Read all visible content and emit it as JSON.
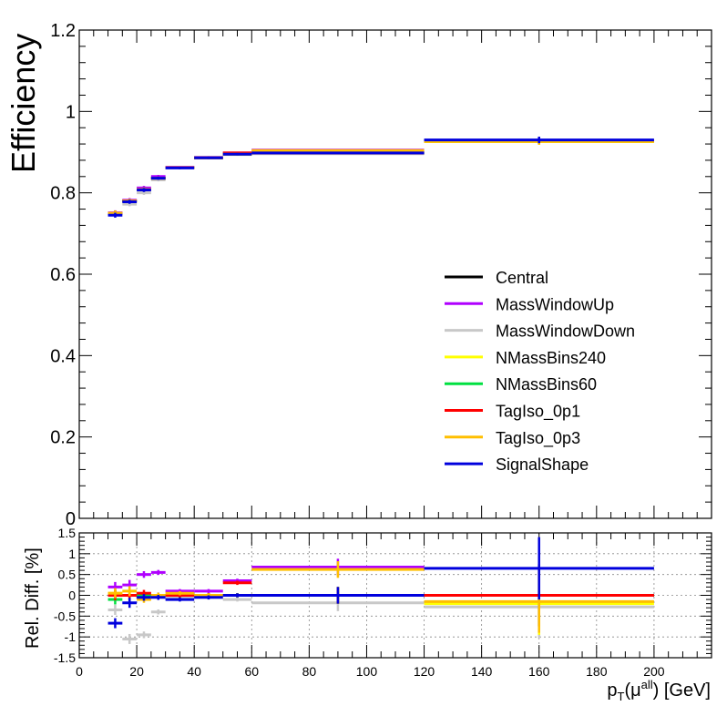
{
  "chart_data": [
    {
      "type": "line",
      "panel": "main",
      "ylabel": "Efficiency",
      "xlim": [
        0,
        220
      ],
      "ylim": [
        0,
        1.2
      ],
      "yticks": [
        "0",
        "0.2",
        "0.4",
        "0.6",
        "0.8",
        "1",
        "1.2"
      ],
      "ytick_values": [
        0,
        0.2,
        0.4,
        0.6,
        0.8,
        1.0,
        1.2
      ],
      "bins": [
        [
          10,
          15
        ],
        [
          15,
          20
        ],
        [
          20,
          25
        ],
        [
          25,
          30
        ],
        [
          30,
          40
        ],
        [
          40,
          50
        ],
        [
          50,
          60
        ],
        [
          60,
          120
        ],
        [
          120,
          200
        ]
      ],
      "series": [
        {
          "name": "Central",
          "color": "#000000",
          "values": [
            0.75,
            0.78,
            0.808,
            0.836,
            0.862,
            0.886,
            0.895,
            0.898,
            0.928
          ],
          "errors": [
            0.006,
            0.005,
            0.005,
            0.004,
            0.003,
            0.003,
            0.003,
            0.002,
            0.008
          ]
        },
        {
          "name": "MassWindowUp",
          "color": "#b000ff",
          "values": [
            0.751,
            0.782,
            0.812,
            0.84,
            0.863,
            0.887,
            0.898,
            0.905,
            0.928
          ]
        },
        {
          "name": "MassWindowDown",
          "color": "#c8c8c8",
          "values": [
            0.748,
            0.772,
            0.8,
            0.832,
            0.862,
            0.886,
            0.894,
            0.896,
            0.926
          ]
        },
        {
          "name": "NMassBins240",
          "color": "#ffff00",
          "values": [
            0.75,
            0.78,
            0.808,
            0.836,
            0.862,
            0.886,
            0.895,
            0.898,
            0.926
          ]
        },
        {
          "name": "NMassBins60",
          "color": "#00e040",
          "values": [
            0.749,
            0.78,
            0.808,
            0.836,
            0.862,
            0.886,
            0.895,
            0.898,
            0.928
          ]
        },
        {
          "name": "TagIso_0p1",
          "color": "#ff0000",
          "values": [
            0.75,
            0.78,
            0.808,
            0.836,
            0.862,
            0.886,
            0.898,
            0.898,
            0.928
          ]
        },
        {
          "name": "TagIso_0p3",
          "color": "#ffbf00",
          "values": [
            0.75,
            0.78,
            0.808,
            0.836,
            0.862,
            0.886,
            0.895,
            0.904,
            0.926
          ]
        },
        {
          "name": "SignalShape",
          "color": "#0000dd",
          "values": [
            0.745,
            0.778,
            0.807,
            0.836,
            0.861,
            0.886,
            0.895,
            0.898,
            0.93
          ]
        }
      ],
      "legend_position": "right"
    },
    {
      "type": "line",
      "panel": "ratio",
      "xlabel_main": "p",
      "xlabel_sub": "T",
      "xlabel_paren_open": "(μ",
      "xlabel_sup": "all",
      "xlabel_rest": ") [GeV]",
      "ylabel": "Rel. Diff. [%]",
      "xlim": [
        0,
        220
      ],
      "ylim": [
        -1.5,
        1.5
      ],
      "xticks": [
        "0",
        "20",
        "40",
        "60",
        "80",
        "100",
        "120",
        "140",
        "160",
        "180",
        "200"
      ],
      "xtick_values": [
        0,
        20,
        40,
        60,
        80,
        100,
        120,
        140,
        160,
        180,
        200
      ],
      "yticks": [
        "-1.5",
        "-1",
        "-0.5",
        "0",
        "0.5",
        "1",
        "1.5"
      ],
      "ytick_values": [
        -1.5,
        -1,
        -0.5,
        0,
        0.5,
        1,
        1.5
      ],
      "grid": true,
      "bins": [
        [
          10,
          15
        ],
        [
          15,
          20
        ],
        [
          20,
          25
        ],
        [
          25,
          30
        ],
        [
          30,
          40
        ],
        [
          40,
          50
        ],
        [
          50,
          60
        ],
        [
          60,
          120
        ],
        [
          120,
          200
        ]
      ],
      "series": [
        {
          "name": "Central",
          "color": "#000000",
          "values": [
            0,
            0,
            0,
            0,
            0,
            0,
            0,
            0,
            0
          ]
        },
        {
          "name": "MassWindowUp",
          "color": "#b000ff",
          "values": [
            0.2,
            0.25,
            0.5,
            0.55,
            0.1,
            0.1,
            0.35,
            0.68,
            0.0
          ]
        },
        {
          "name": "MassWindowDown",
          "color": "#c8c8c8",
          "values": [
            -0.35,
            -1.05,
            -0.95,
            -0.4,
            -0.05,
            -0.05,
            -0.1,
            -0.18,
            -0.28
          ]
        },
        {
          "name": "NMassBins240",
          "color": "#ffff00",
          "values": [
            0.05,
            0.0,
            0.0,
            0.0,
            0.0,
            0.0,
            0.0,
            0.0,
            -0.2
          ]
        },
        {
          "name": "NMassBins60",
          "color": "#00e040",
          "values": [
            -0.1,
            0.0,
            0.0,
            0.0,
            0.0,
            0.0,
            0.0,
            0.0,
            0.0
          ]
        },
        {
          "name": "TagIso_0p1",
          "color": "#ff0000",
          "values": [
            0.0,
            0.0,
            0.05,
            0.0,
            0.0,
            0.0,
            0.3,
            0.0,
            0.0
          ]
        },
        {
          "name": "TagIso_0p3",
          "color": "#ffbf00",
          "values": [
            0.05,
            0.1,
            -0.1,
            0.0,
            0.05,
            0.0,
            0.0,
            0.62,
            -0.15
          ]
        },
        {
          "name": "SignalShape",
          "color": "#0000dd",
          "values": [
            -0.67,
            -0.18,
            -0.05,
            -0.05,
            -0.1,
            -0.05,
            0.0,
            0.0,
            0.65
          ]
        }
      ],
      "ratio_errors": [
        0.12,
        0.12,
        0.08,
        0.06,
        0.05,
        0.05,
        0.05,
        0.2,
        0.75
      ]
    }
  ]
}
